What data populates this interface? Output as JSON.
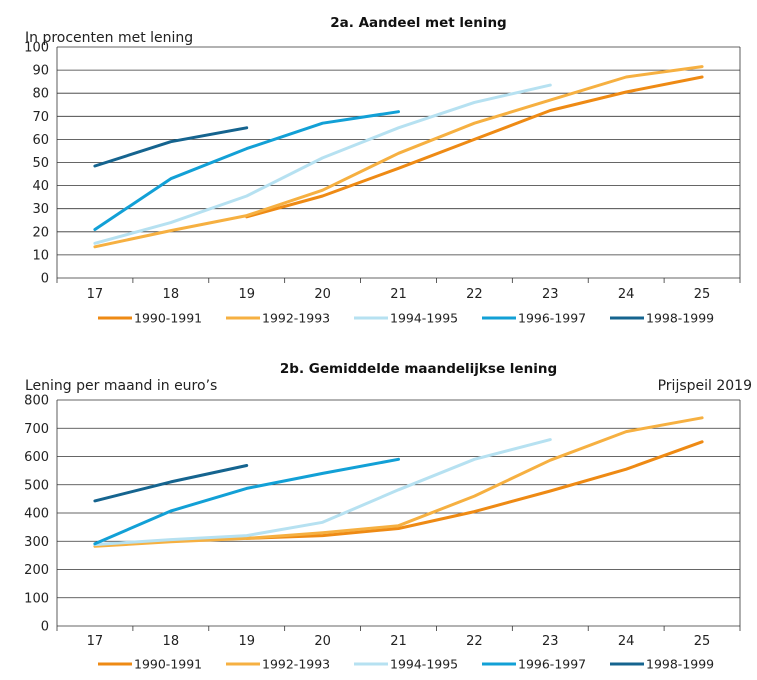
{
  "colors": {
    "1990-1991": "#ee8a14",
    "1992-1993": "#f6b041",
    "1994-1995": "#b6e1f1",
    "1996-1997": "#12a0d6",
    "1998-1999": "#15648f"
  },
  "chart_data": [
    {
      "type": "line",
      "title": "2a. Aandeel met lening",
      "ylabel": "In procenten met lening",
      "ylabel_right": "",
      "x": [
        17,
        18,
        19,
        20,
        21,
        22,
        23,
        24,
        25
      ],
      "ylim": [
        0,
        100
      ],
      "yticks": [
        0,
        10,
        20,
        30,
        40,
        50,
        60,
        70,
        80,
        90,
        100
      ],
      "grid": true,
      "legend_position": "bottom",
      "series": [
        {
          "name": "1990-1991",
          "x": [
            19,
            20,
            21,
            22,
            23,
            24,
            25
          ],
          "values": [
            26.5,
            35.5,
            47.5,
            60,
            72.5,
            80.5,
            87
          ]
        },
        {
          "name": "1992-1993",
          "x": [
            17,
            18,
            19,
            20,
            21,
            22,
            23,
            24,
            25
          ],
          "values": [
            13.5,
            20.5,
            27,
            38,
            54,
            67,
            77,
            87,
            91.5
          ]
        },
        {
          "name": "1994-1995",
          "x": [
            17,
            18,
            19,
            20,
            21,
            22,
            23
          ],
          "values": [
            15,
            24,
            35.5,
            52,
            65,
            76,
            83.5
          ]
        },
        {
          "name": "1996-1997",
          "x": [
            17,
            18,
            19,
            20,
            21
          ],
          "values": [
            21,
            43,
            56,
            67,
            72
          ]
        },
        {
          "name": "1998-1999",
          "x": [
            17,
            18,
            19
          ],
          "values": [
            48.5,
            59,
            65
          ]
        }
      ]
    },
    {
      "type": "line",
      "title": "2b. Gemiddelde maandelijkse lening",
      "ylabel": "Lening per maand in euro’s",
      "ylabel_right": "Prijspeil 2019",
      "x": [
        17,
        18,
        19,
        20,
        21,
        22,
        23,
        24,
        25
      ],
      "ylim": [
        0,
        800
      ],
      "yticks": [
        0,
        100,
        200,
        300,
        400,
        500,
        600,
        700,
        800
      ],
      "grid": true,
      "legend_position": "bottom",
      "series": [
        {
          "name": "1990-1991",
          "x": [
            19,
            20,
            21,
            22,
            23,
            24,
            25
          ],
          "values": [
            310,
            320,
            345,
            405,
            478,
            555,
            652
          ]
        },
        {
          "name": "1992-1993",
          "x": [
            17,
            18,
            19,
            20,
            21,
            22,
            23,
            24,
            25
          ],
          "values": [
            282,
            298,
            310,
            330,
            355,
            460,
            587,
            688,
            737
          ]
        },
        {
          "name": "1994-1995",
          "x": [
            17,
            18,
            19,
            20,
            21,
            22,
            23
          ],
          "values": [
            288,
            306,
            320,
            367,
            482,
            590,
            660
          ]
        },
        {
          "name": "1996-1997",
          "x": [
            17,
            18,
            19,
            20,
            21
          ],
          "values": [
            291,
            407,
            487,
            540,
            590
          ]
        },
        {
          "name": "1998-1999",
          "x": [
            17,
            18,
            19
          ],
          "values": [
            443,
            510,
            568
          ]
        }
      ]
    }
  ]
}
